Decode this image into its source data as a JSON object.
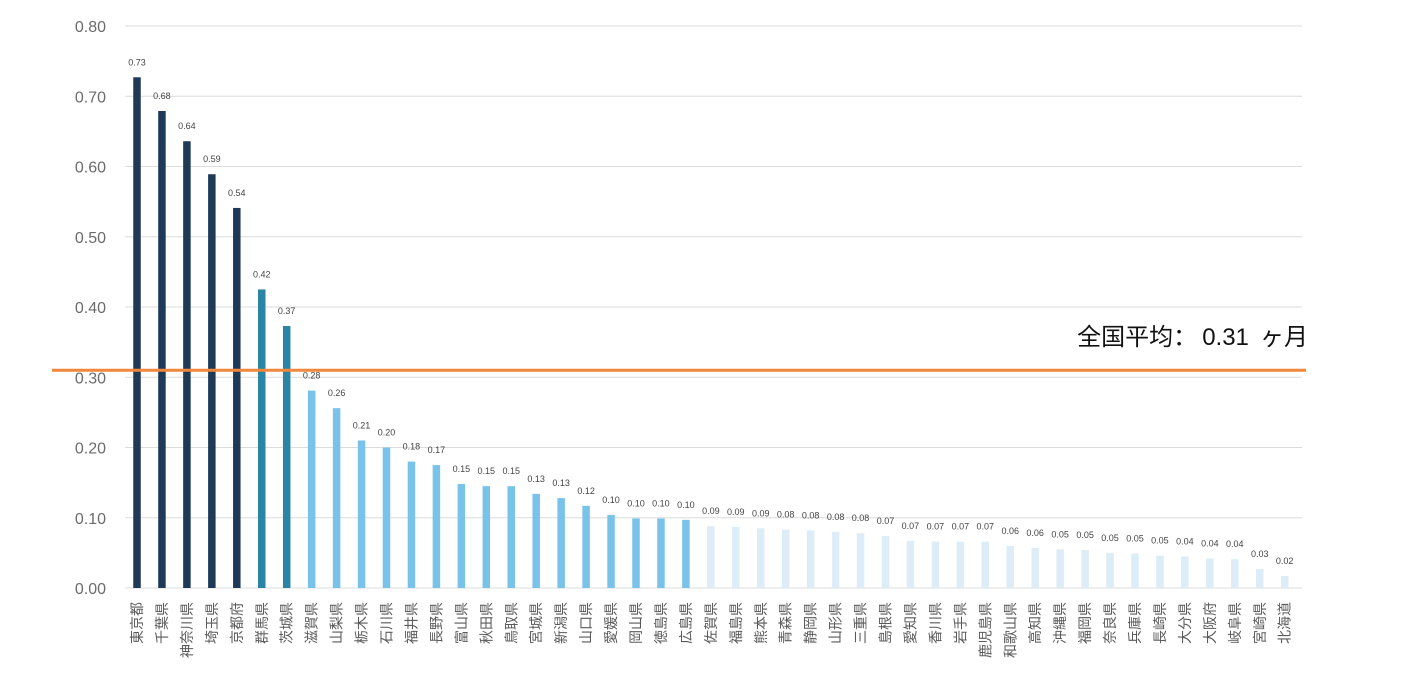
{
  "chart_data": {
    "type": "bar",
    "ylim": [
      0,
      0.8
    ],
    "yticks": [
      "0.00",
      "0.10",
      "0.20",
      "0.30",
      "0.40",
      "0.50",
      "0.60",
      "0.70",
      "0.80"
    ],
    "grid": true,
    "categories": [
      "東京都",
      "千葉県",
      "神奈川県",
      "埼玉県",
      "京都府",
      "群馬県",
      "茨城県",
      "滋賀県",
      "山梨県",
      "栃木県",
      "石川県",
      "福井県",
      "長野県",
      "富山県",
      "秋田県",
      "鳥取県",
      "宮城県",
      "新潟県",
      "山口県",
      "愛媛県",
      "岡山県",
      "徳島県",
      "広島県",
      "佐賀県",
      "福島県",
      "熊本県",
      "青森県",
      "静岡県",
      "山形県",
      "三重県",
      "島根県",
      "愛知県",
      "香川県",
      "岩手県",
      "鹿児島県",
      "和歌山県",
      "高知県",
      "沖縄県",
      "福岡県",
      "奈良県",
      "兵庫県",
      "長崎県",
      "大分県",
      "大阪府",
      "岐阜県",
      "宮崎県",
      "北海道"
    ],
    "values": [
      0.73,
      0.68,
      0.64,
      0.59,
      0.54,
      0.42,
      0.37,
      0.28,
      0.26,
      0.21,
      0.2,
      0.18,
      0.17,
      0.15,
      0.15,
      0.15,
      0.13,
      0.13,
      0.12,
      0.1,
      0.1,
      0.1,
      0.1,
      0.09,
      0.09,
      0.09,
      0.08,
      0.08,
      0.08,
      0.08,
      0.07,
      0.07,
      0.07,
      0.07,
      0.07,
      0.06,
      0.06,
      0.05,
      0.05,
      0.05,
      0.05,
      0.05,
      0.04,
      0.04,
      0.04,
      0.03,
      0.02
    ],
    "bar_heights": [
      0.727,
      0.679,
      0.636,
      0.589,
      0.541,
      0.425,
      0.373,
      0.281,
      0.256,
      0.21,
      0.2,
      0.18,
      0.175,
      0.148,
      0.145,
      0.145,
      0.134,
      0.128,
      0.117,
      0.104,
      0.099,
      0.099,
      0.097,
      0.088,
      0.087,
      0.085,
      0.083,
      0.082,
      0.08,
      0.078,
      0.074,
      0.067,
      0.066,
      0.066,
      0.066,
      0.06,
      0.057,
      0.055,
      0.054,
      0.05,
      0.049,
      0.046,
      0.045,
      0.042,
      0.041,
      0.027,
      0.017
    ],
    "colors": {
      "dark": "#1f3a57",
      "teal": "#2b84a3",
      "light": "#79c3ea",
      "faint": "#dcedf7",
      "grid": "#dcdcdc",
      "average_line": "#f0873c"
    },
    "color_groups": [
      "dark",
      "dark",
      "dark",
      "dark",
      "dark",
      "teal",
      "teal",
      "light",
      "light",
      "light",
      "light",
      "light",
      "light",
      "light",
      "light",
      "light",
      "light",
      "light",
      "light",
      "light",
      "light",
      "light",
      "light",
      "faint",
      "faint",
      "faint",
      "faint",
      "faint",
      "faint",
      "faint",
      "faint",
      "faint",
      "faint",
      "faint",
      "faint",
      "faint",
      "faint",
      "faint",
      "faint",
      "faint",
      "faint",
      "faint",
      "faint",
      "faint",
      "faint",
      "faint",
      "faint"
    ],
    "average": {
      "value": 0.31,
      "label_text": "全国平均：",
      "label_value": "0.31",
      "label_unit": "ヶ月"
    }
  }
}
